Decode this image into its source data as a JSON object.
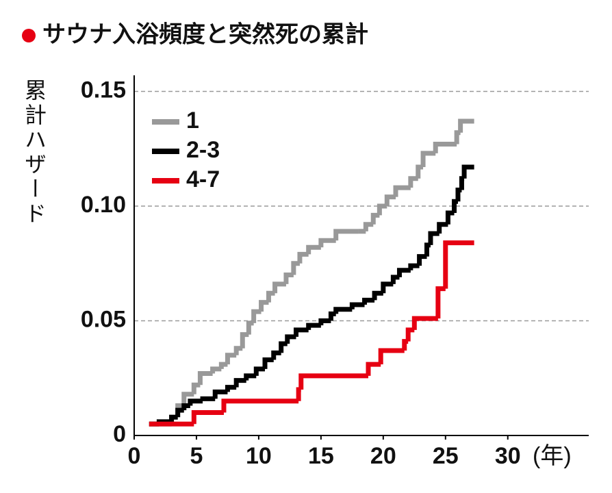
{
  "chart_data": {
    "type": "step",
    "title": "サウナ入浴頻度と突然死の累計",
    "ylabel": "累計ハザード",
    "xlabel": "(年)",
    "xlim": [
      0,
      36.5
    ],
    "xticks": [
      0,
      5,
      10,
      15,
      20,
      25,
      30
    ],
    "ylim": [
      0,
      0.157
    ],
    "yticks": [
      0,
      0.05,
      {
        "value": 0.1,
        "label": "0.10"
      },
      0.15
    ],
    "grid": true,
    "legend": "upper left",
    "series": [
      {
        "name": "1",
        "color": "#999999",
        "x": [
          1.2,
          3.0,
          3.5,
          4.0,
          4.8,
          5.3,
          6.3,
          7.0,
          7.5,
          8.2,
          8.7,
          9.2,
          9.6,
          10.2,
          10.8,
          11.3,
          12.2,
          12.8,
          13.3,
          14.0,
          15.0,
          16.2,
          18.0,
          18.6,
          19.2,
          19.7,
          20.3,
          21.0,
          22.2,
          22.8,
          23.2,
          24.2,
          25.9,
          26.2,
          27.3
        ],
        "values": [
          0.005,
          0.008,
          0.013,
          0.018,
          0.022,
          0.027,
          0.029,
          0.031,
          0.035,
          0.038,
          0.044,
          0.049,
          0.054,
          0.058,
          0.062,
          0.066,
          0.07,
          0.075,
          0.079,
          0.082,
          0.085,
          0.089,
          0.089,
          0.092,
          0.096,
          0.1,
          0.104,
          0.108,
          0.112,
          0.117,
          0.123,
          0.127,
          0.132,
          0.137,
          0.137
        ]
      },
      {
        "name": "2-3",
        "color": "#000000",
        "x": [
          1.2,
          2.0,
          3.0,
          3.5,
          4.0,
          4.5,
          5.5,
          6.5,
          7.5,
          8.2,
          9.0,
          9.8,
          10.5,
          11.2,
          11.8,
          12.3,
          13.0,
          14.0,
          15.0,
          15.8,
          16.2,
          17.5,
          18.5,
          19.3,
          20.0,
          20.8,
          21.3,
          22.2,
          22.9,
          23.5,
          23.8,
          24.5,
          25.2,
          25.7,
          26.0,
          26.3,
          26.5,
          27.3
        ],
        "values": [
          0.005,
          0.006,
          0.008,
          0.011,
          0.013,
          0.015,
          0.016,
          0.019,
          0.021,
          0.024,
          0.026,
          0.029,
          0.033,
          0.036,
          0.04,
          0.043,
          0.046,
          0.048,
          0.05,
          0.053,
          0.055,
          0.057,
          0.059,
          0.062,
          0.066,
          0.069,
          0.072,
          0.074,
          0.078,
          0.083,
          0.088,
          0.092,
          0.097,
          0.102,
          0.107,
          0.112,
          0.117,
          0.117
        ]
      },
      {
        "name": "4-7",
        "color": "#e60012",
        "x": [
          1.2,
          4.8,
          7.2,
          13.2,
          13.4,
          18.8,
          19.8,
          21.7,
          22.0,
          22.5,
          24.4,
          25.0,
          27.3
        ],
        "values": [
          0.005,
          0.01,
          0.015,
          0.02,
          0.026,
          0.031,
          0.037,
          0.041,
          0.046,
          0.051,
          0.064,
          0.084,
          0.084
        ]
      }
    ]
  }
}
